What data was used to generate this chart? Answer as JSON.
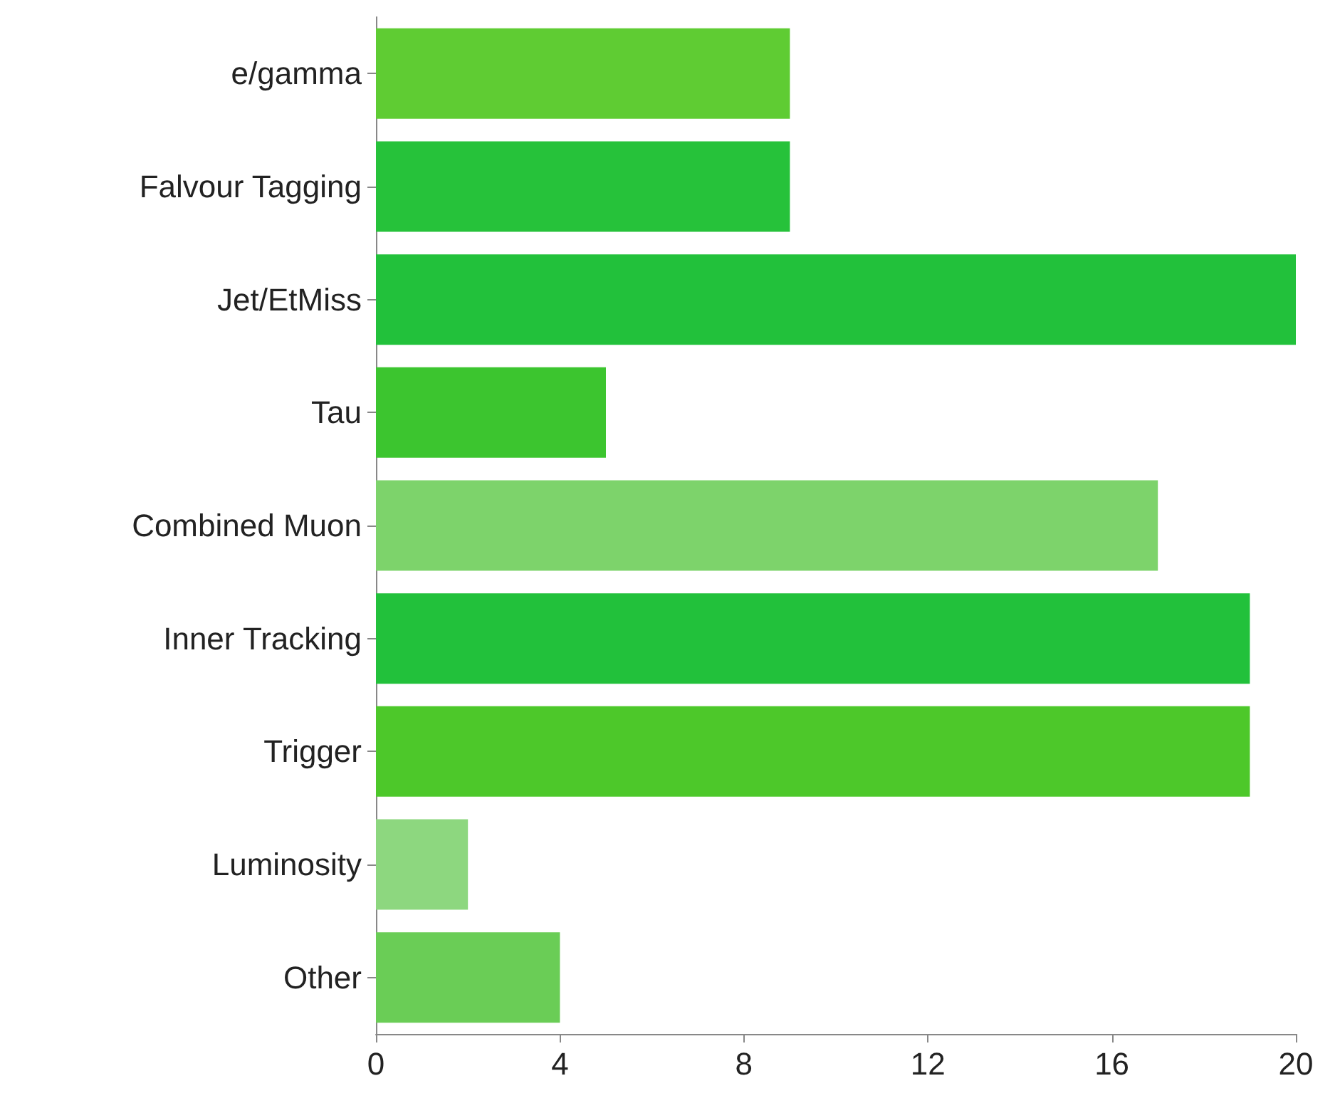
{
  "chart_data": {
    "type": "bar",
    "orientation": "horizontal",
    "categories": [
      "e/gamma",
      "Falvour Tagging",
      "Jet/EtMiss",
      "Tau",
      "Combined Muon",
      "Inner Tracking",
      "Trigger",
      "Luminosity",
      "Other"
    ],
    "values": [
      9,
      9,
      20,
      5,
      17,
      19,
      19,
      2,
      4
    ],
    "colors": [
      "#5fcc33",
      "#26c23a",
      "#22c13b",
      "#3cc52f",
      "#7dd36b",
      "#22c13b",
      "#4dc82a",
      "#8dd77f",
      "#6acd56"
    ],
    "xlim": [
      0,
      20
    ],
    "xticks": [
      0,
      4,
      8,
      12,
      16,
      20
    ],
    "grid": false
  }
}
